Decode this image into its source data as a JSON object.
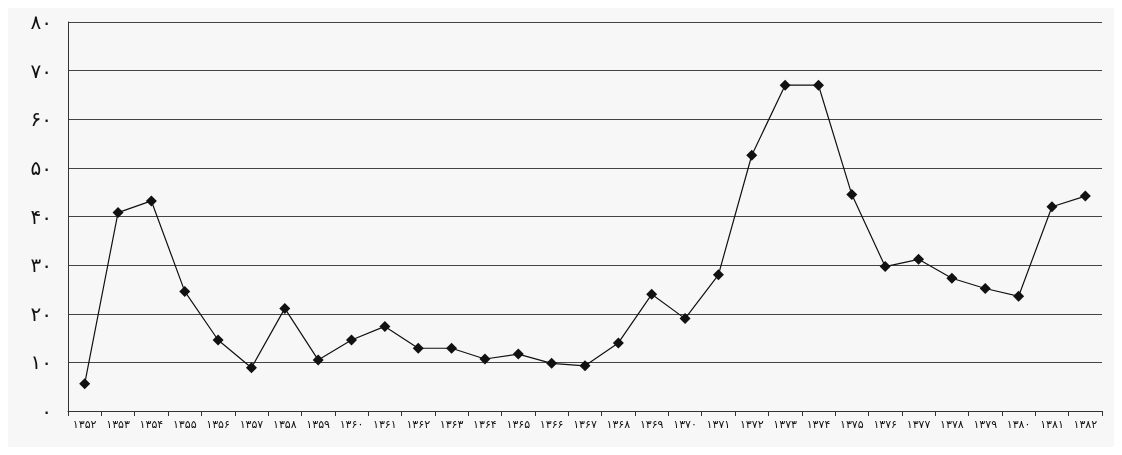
{
  "chart_data": {
    "type": "line",
    "categories": [
      "۱۳۵۲",
      "۱۳۵۳",
      "۱۳۵۴",
      "۱۳۵۵",
      "۱۳۵۶",
      "۱۳۵۷",
      "۱۳۵۸",
      "۱۳۵۹",
      "۱۳۶۰",
      "۱۳۶۱",
      "۱۳۶۲",
      "۱۳۶۳",
      "۱۳۶۴",
      "۱۳۶۵",
      "۱۳۶۶",
      "۱۳۶۷",
      "۱۳۶۸",
      "۱۳۶۹",
      "۱۳۷۰",
      "۱۳۷۱",
      "۱۳۷۲",
      "۱۳۷۳",
      "۱۳۷۴",
      "۱۳۷۵",
      "۱۳۷۶",
      "۱۳۷۷",
      "۱۳۷۸",
      "۱۳۷۹",
      "۱۳۸۰",
      "۱۳۸۱",
      "۱۳۸۲"
    ],
    "series": [
      {
        "color": "#111111",
        "values": [
          5.6,
          40.8,
          43.2,
          24.6,
          14.6,
          8.9,
          21.1,
          10.5,
          14.6,
          17.4,
          12.9,
          12.9,
          10.7,
          11.7,
          9.8,
          9.3,
          14,
          24,
          19,
          28,
          52.6,
          67,
          67,
          44.5,
          29.7,
          31.2,
          27.3,
          25.2,
          23.6,
          42,
          44.2
        ]
      }
    ],
    "ylim": [
      0,
      80
    ],
    "yticks": [
      {
        "value": 0,
        "label": "۰"
      },
      {
        "value": 10,
        "label": "۱۰"
      },
      {
        "value": 20,
        "label": "۲۰"
      },
      {
        "value": 30,
        "label": "۳۰"
      },
      {
        "value": 40,
        "label": "۴۰"
      },
      {
        "value": 50,
        "label": "۵۰"
      },
      {
        "value": 60,
        "label": "۶۰"
      },
      {
        "value": 70,
        "label": "۷۰"
      },
      {
        "value": 80,
        "label": "۸۰"
      }
    ],
    "grid": "y",
    "marker": "diamond",
    "line_style": "solid"
  }
}
